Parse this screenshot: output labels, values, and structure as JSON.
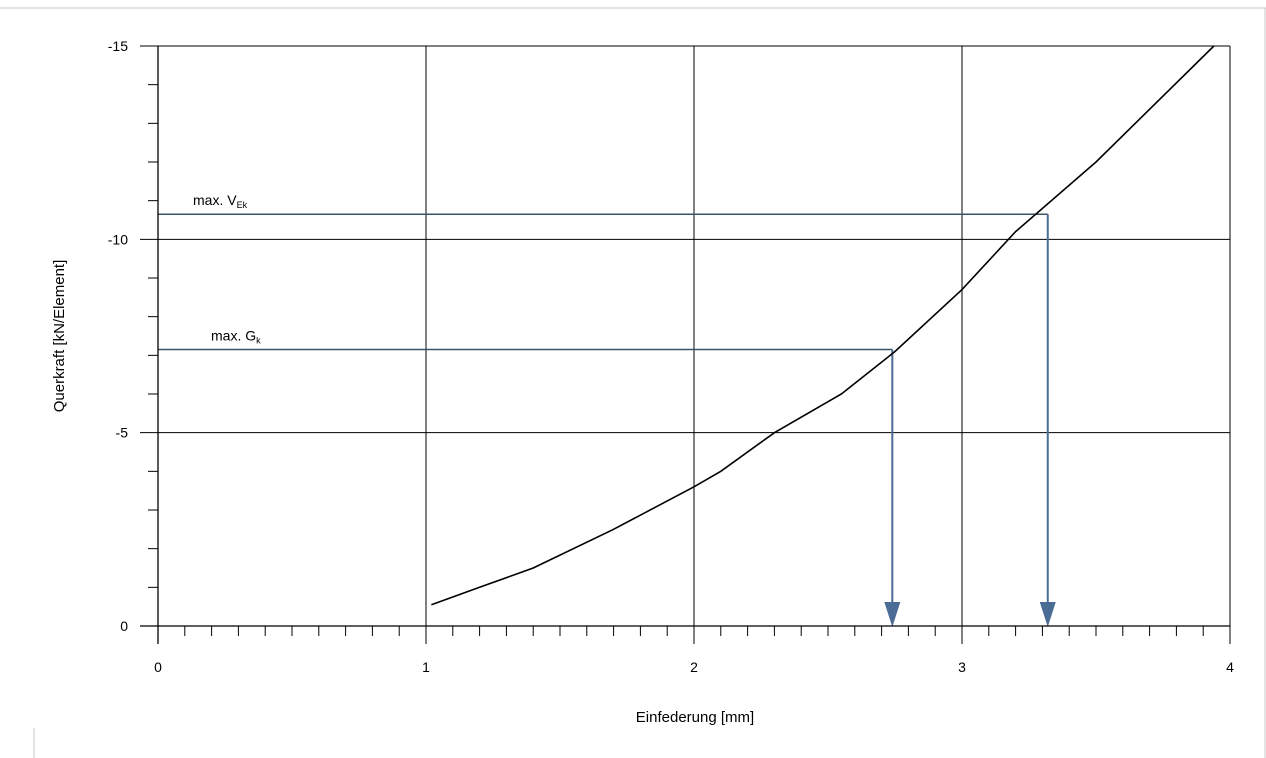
{
  "chart_data": {
    "type": "line",
    "title": "",
    "xlabel": "Einfederung [mm]",
    "ylabel": "Querkraft [kN/Element]",
    "xlim": [
      0,
      4
    ],
    "ylim": [
      0,
      -15
    ],
    "x_ticks": [
      0,
      1,
      2,
      3,
      4
    ],
    "x_tick_labels": [
      "0",
      "1",
      "2",
      "3",
      "4"
    ],
    "x_minor_step": 0.1,
    "y_ticks": [
      0,
      -5,
      -10,
      -15
    ],
    "y_tick_labels": [
      "0",
      "-5",
      "-10",
      "-15"
    ],
    "y_minor_step": 1,
    "grid": true,
    "series": [
      {
        "x": [
          1.02,
          1.2,
          1.4,
          1.7,
          2.0,
          2.1,
          2.3,
          2.55,
          2.75,
          3.0,
          3.2,
          3.5,
          3.94
        ],
        "y": [
          -0.55,
          -1.0,
          -1.5,
          -2.5,
          -3.6,
          -4.0,
          -5.0,
          -6.0,
          -7.1,
          -8.7,
          -10.2,
          -12.0,
          -15.0
        ],
        "color": "#000000"
      }
    ],
    "annotations": [
      {
        "label": "max. V",
        "subscript": "Ek",
        "y": -10.65,
        "x_end": 3.32,
        "color": "#3b5566",
        "arrow_color": "#4a6c95"
      },
      {
        "label": "max. G",
        "subscript": "k",
        "y": -7.15,
        "x_end": 2.74,
        "color": "#3b5566",
        "arrow_color": "#4a6c95"
      }
    ]
  }
}
